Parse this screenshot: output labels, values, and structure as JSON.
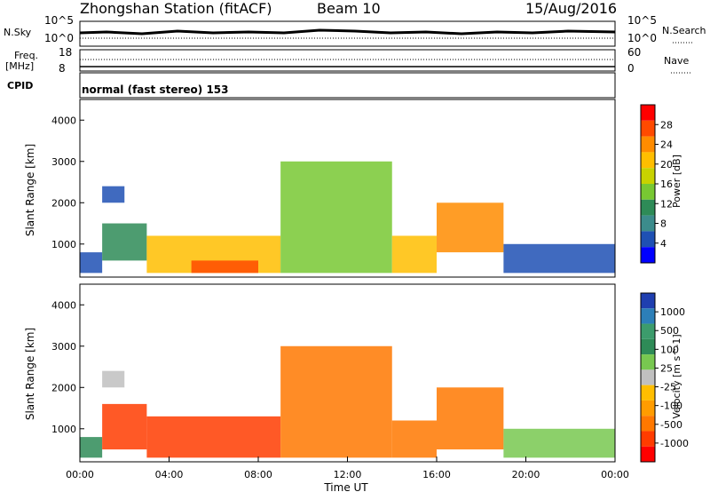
{
  "header": {
    "station": "Zhongshan Station (fitACF)",
    "beam": "Beam 10",
    "date": "15/Aug/2016"
  },
  "panel_sky": {
    "left_label": "N.Sky",
    "left_ticks": [
      "10^5",
      "10^0"
    ],
    "right_ticks": [
      "10^5",
      "10^0"
    ],
    "right_label": "N.Search"
  },
  "panel_freq": {
    "left_label_1": "Freq.",
    "left_label_2": "[MHz]",
    "left_ticks": [
      "18",
      "8"
    ],
    "right_ticks": [
      "60",
      "0"
    ],
    "right_label": "Nave"
  },
  "panel_cpid": {
    "label": "CPID",
    "value": "normal (fast stereo) 153"
  },
  "colorscales": {
    "power": {
      "label": "Power [dB]",
      "ticks": [
        "28",
        "24",
        "20",
        "16",
        "12",
        "8",
        "4"
      ],
      "colors": [
        "#ff0000",
        "#ff4a00",
        "#ff8c00",
        "#ffbe00",
        "#c8d200",
        "#78c832",
        "#2e8b57",
        "#3c8c8c",
        "#1e50b4",
        "#0000ff"
      ]
    },
    "velocity": {
      "label": "Velocity [m s^-1]",
      "ticks": [
        "1000",
        "500",
        "100",
        "25",
        "-25",
        "-100",
        "-500",
        "-1000"
      ],
      "colors": [
        "#1f3fb0",
        "#2c7fb8",
        "#3c9c6c",
        "#2e8b57",
        "#78c850",
        "#c0c0c0",
        "#ffbe00",
        "#ff9c00",
        "#ff7800",
        "#ff3c00",
        "#ff0000"
      ]
    }
  },
  "chart_data": [
    {
      "type": "heatmap",
      "panel": "power",
      "ylabel": "Slant Range [km]",
      "ylim": [
        200,
        4500
      ],
      "yticks": [
        "1000",
        "2000",
        "3000",
        "4000"
      ],
      "xlim": [
        "00:00",
        "24:00"
      ],
      "series": [
        {
          "name": "Power [dB]",
          "blobs": [
            {
              "t0": 0.0,
              "t1": 1.0,
              "r0": 300,
              "r1": 800,
              "v": 8
            },
            {
              "t0": 1.0,
              "t1": 3.0,
              "r0": 600,
              "r1": 1500,
              "v": 14
            },
            {
              "t0": 3.0,
              "t1": 9.0,
              "r0": 300,
              "r1": 1200,
              "v": 22
            },
            {
              "t0": 5.0,
              "t1": 8.0,
              "r0": 300,
              "r1": 600,
              "v": 28
            },
            {
              "t0": 9.0,
              "t1": 14.0,
              "r0": 300,
              "r1": 3000,
              "v": 16
            },
            {
              "t0": 14.0,
              "t1": 16.0,
              "r0": 300,
              "r1": 1200,
              "v": 24
            },
            {
              "t0": 16.0,
              "t1": 19.0,
              "r0": 800,
              "r1": 2000,
              "v": 26
            },
            {
              "t0": 19.0,
              "t1": 24.0,
              "r0": 300,
              "r1": 1000,
              "v": 6
            },
            {
              "t0": 1.0,
              "t1": 2.0,
              "r0": 2000,
              "r1": 2400,
              "v": 6
            }
          ]
        }
      ]
    },
    {
      "type": "heatmap",
      "panel": "velocity",
      "ylabel": "Slant Range [km]",
      "ylim": [
        200,
        4500
      ],
      "yticks": [
        "1000",
        "2000",
        "3000",
        "4000"
      ],
      "xlim": [
        "00:00",
        "24:00"
      ],
      "xticks": [
        "00:00",
        "04:00",
        "08:00",
        "12:00",
        "16:00",
        "20:00",
        "00:00"
      ],
      "xlabel": "Time UT",
      "series": [
        {
          "name": "Velocity [m s^-1]",
          "blobs": [
            {
              "t0": 0.0,
              "t1": 1.0,
              "r0": 300,
              "r1": 800,
              "v": 100
            },
            {
              "t0": 1.0,
              "t1": 3.0,
              "r0": 500,
              "r1": 1600,
              "v": -300
            },
            {
              "t0": 3.0,
              "t1": 9.0,
              "r0": 300,
              "r1": 1300,
              "v": -300
            },
            {
              "t0": 9.0,
              "t1": 14.0,
              "r0": 300,
              "r1": 3000,
              "v": -200
            },
            {
              "t0": 14.0,
              "t1": 16.0,
              "r0": 300,
              "r1": 1200,
              "v": -200
            },
            {
              "t0": 16.0,
              "t1": 19.0,
              "r0": 500,
              "r1": 2000,
              "v": -200
            },
            {
              "t0": 19.0,
              "t1": 24.0,
              "r0": 300,
              "r1": 1000,
              "v": 50
            },
            {
              "t0": 1.0,
              "t1": 2.0,
              "r0": 2000,
              "r1": 2400,
              "v": 0
            }
          ]
        }
      ]
    }
  ]
}
